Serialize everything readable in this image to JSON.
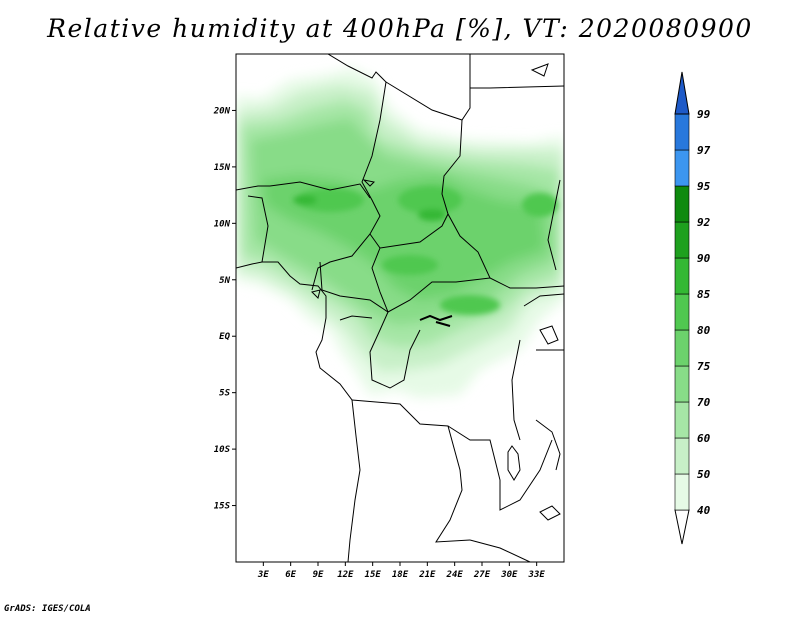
{
  "title": "Relative humidity at 400hPa [%], VT: 2020080900",
  "credit": "GrADS: IGES/COLA",
  "map": {
    "lon_range": [
      0,
      36
    ],
    "lat_range": [
      -20,
      25
    ],
    "lat_ticks": [
      {
        "value": 20,
        "label": "20N"
      },
      {
        "value": 15,
        "label": "15N"
      },
      {
        "value": 10,
        "label": "10N"
      },
      {
        "value": 5,
        "label": "5N"
      },
      {
        "value": 0,
        "label": "EQ"
      },
      {
        "value": -5,
        "label": "5S"
      },
      {
        "value": -10,
        "label": "10S"
      },
      {
        "value": -15,
        "label": "15S"
      }
    ],
    "lon_ticks": [
      {
        "value": 3,
        "label": "3E"
      },
      {
        "value": 6,
        "label": "6E"
      },
      {
        "value": 9,
        "label": "9E"
      },
      {
        "value": 12,
        "label": "12E"
      },
      {
        "value": 15,
        "label": "15E"
      },
      {
        "value": 18,
        "label": "18E"
      },
      {
        "value": 21,
        "label": "21E"
      },
      {
        "value": 24,
        "label": "24E"
      },
      {
        "value": 27,
        "label": "27E"
      },
      {
        "value": 30,
        "label": "30E"
      },
      {
        "value": 33,
        "label": "33E"
      }
    ]
  },
  "colorbar": {
    "levels": [
      "40",
      "50",
      "60",
      "70",
      "75",
      "80",
      "85",
      "90",
      "92",
      "95",
      "97",
      "99"
    ],
    "colors": [
      "#e6fae6",
      "#c8f0c8",
      "#a6e6a6",
      "#88dc88",
      "#6cd26c",
      "#50c850",
      "#34b834",
      "#1ea01e",
      "#0e8a0e",
      "#3c96f0",
      "#2878dc",
      "#1e5ac8"
    ]
  }
}
